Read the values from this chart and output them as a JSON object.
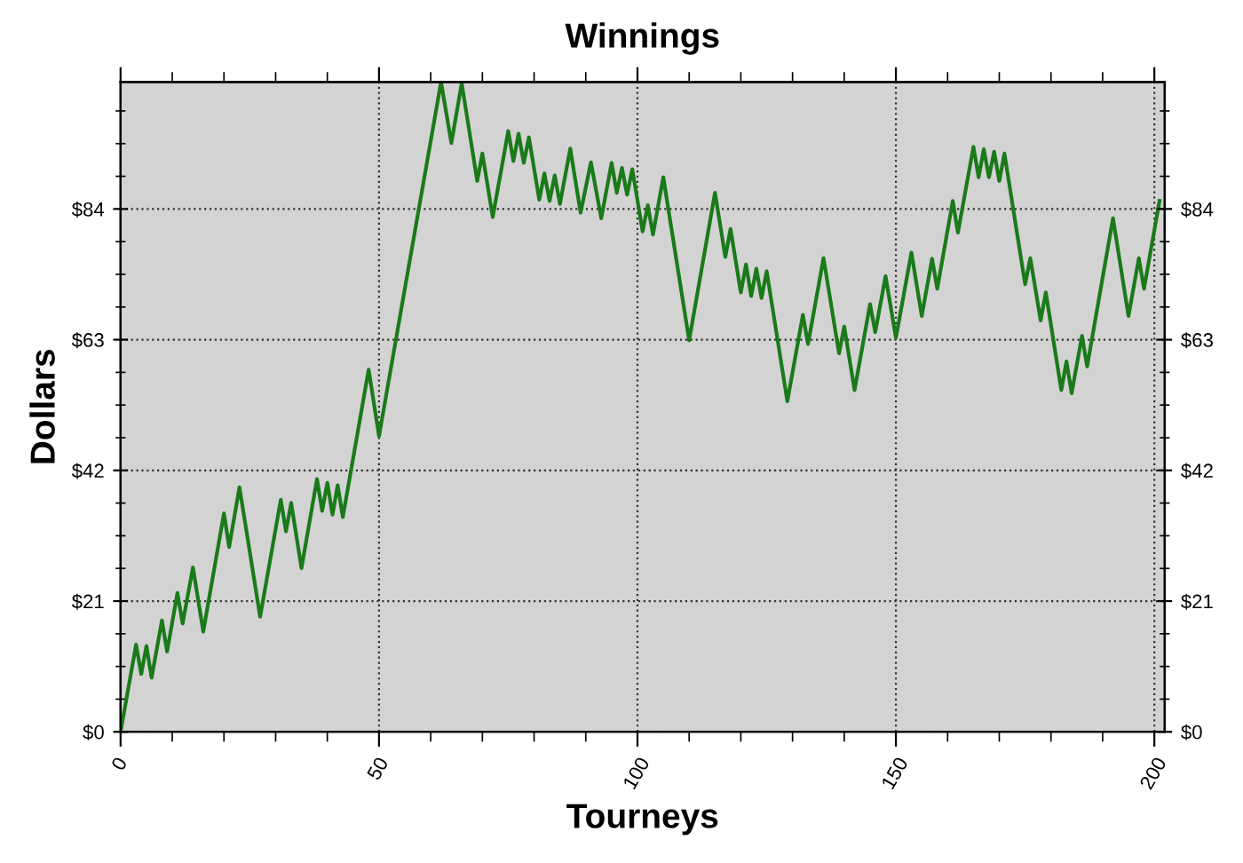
{
  "chart_data": {
    "type": "line",
    "title": "Winnings",
    "xlabel": "Tourneys",
    "ylabel": "Dollars",
    "xlim": [
      0,
      202
    ],
    "xticks": [
      0,
      50,
      100,
      150,
      200
    ],
    "ylim": [
      0,
      104.4
    ],
    "yticks": [
      {
        "value": 0,
        "label": "$0"
      },
      {
        "value": 21,
        "label": "$21"
      },
      {
        "value": 42,
        "label": "$42"
      },
      {
        "value": 63,
        "label": "$63"
      },
      {
        "value": 84,
        "label": "$84"
      }
    ],
    "y2lim": [
      0,
      104.4
    ],
    "y2ticks": [
      {
        "value": 0,
        "label": "$0"
      },
      {
        "value": 21,
        "label": "$21"
      },
      {
        "value": 42,
        "label": "$42"
      },
      {
        "value": 63,
        "label": "$63"
      },
      {
        "value": 84,
        "label": "$84"
      }
    ],
    "grid": true,
    "marker": "none",
    "line_style": "solid",
    "series": [
      {
        "color": "#1a7a1a",
        "x": [
          0,
          3,
          4,
          5,
          6,
          8,
          9,
          11,
          12,
          14,
          16,
          20,
          21,
          23,
          27,
          31,
          32,
          33,
          35,
          38,
          39,
          40,
          41,
          42,
          43,
          48,
          50,
          62,
          64,
          66,
          69,
          70,
          72,
          75,
          76,
          77,
          78,
          79,
          81,
          82,
          83,
          84,
          85,
          87,
          89,
          91,
          93,
          95,
          96,
          97,
          98,
          99,
          101,
          102,
          103,
          105,
          110,
          115,
          117,
          118,
          120,
          121,
          122,
          123,
          124,
          125,
          129,
          132,
          133,
          136,
          139,
          140,
          142,
          145,
          146,
          148,
          150,
          153,
          155,
          157,
          158,
          161,
          162,
          165,
          166,
          167,
          168,
          169,
          170,
          171,
          175,
          176,
          178,
          179,
          182,
          183,
          184,
          186,
          187,
          192,
          195,
          197,
          198,
          201
        ],
        "values": [
          0,
          14.0,
          9.3,
          13.8,
          8.7,
          17.9,
          12.9,
          22.3,
          17.4,
          26.4,
          16.1,
          35.1,
          29.7,
          39.3,
          18.5,
          37.3,
          32.2,
          36.8,
          26.3,
          40.6,
          35.5,
          40.0,
          34.9,
          39.6,
          34.5,
          58.2,
          47.5,
          104.4,
          94.6,
          104.2,
          88.5,
          92.9,
          82.7,
          96.5,
          91.7,
          96.1,
          91.4,
          95.5,
          85.5,
          89.7,
          85.3,
          89.4,
          84.8,
          93.7,
          83.4,
          91.5,
          82.5,
          91.4,
          86.6,
          90.6,
          86.3,
          90.4,
          80.4,
          84.6,
          79.9,
          89.1,
          62.9,
          86.6,
          76.3,
          80.8,
          70.6,
          75.1,
          70.0,
          74.4,
          69.7,
          74.0,
          53.1,
          67.0,
          62.3,
          76.1,
          60.8,
          65.1,
          54.9,
          68.7,
          64.2,
          73.2,
          63.3,
          77.0,
          66.8,
          76.0,
          71.2,
          85.3,
          80.2,
          94.0,
          89.1,
          93.6,
          89.1,
          93.2,
          88.5,
          92.9,
          71.9,
          76.1,
          66.1,
          70.6,
          54.9,
          59.5,
          54.4,
          63.6,
          58.7,
          82.5,
          66.8,
          76.1,
          71.2,
          85.3
        ]
      }
    ]
  }
}
